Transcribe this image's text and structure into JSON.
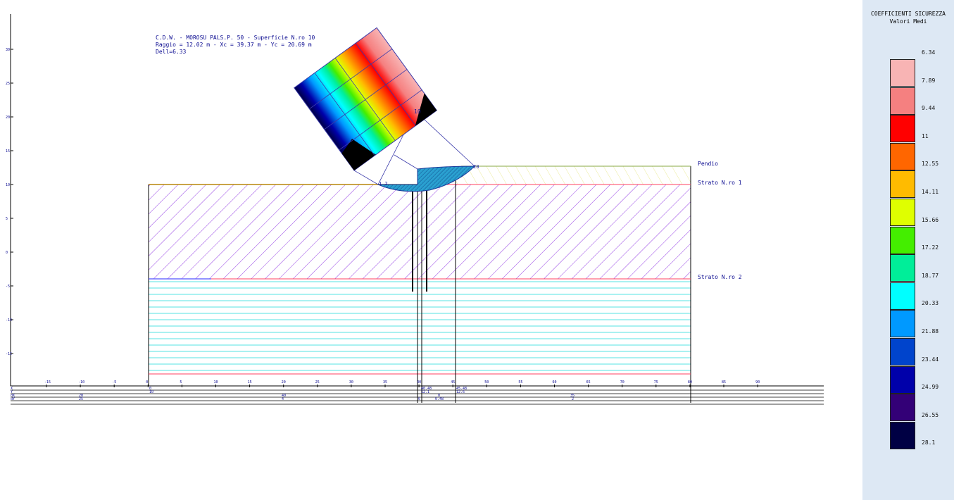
{
  "header": {
    "line1": "C.D.W. - MOROSU PALS.P. 50 - Superficie N.ro 10",
    "line2": "Raggio = 12.02 m - Xc = 39.37 m - Yc = 20.69 m",
    "line3": "Dell=6.33"
  },
  "layers": {
    "pendio": "Pendio",
    "strato1": "Strato N.ro 1",
    "strato2": "Strato N.ro 2"
  },
  "grid_point_label": "10",
  "surface_point_labels": {
    "start": "1 2",
    "end": "20"
  },
  "y_axis_ticks": [
    "30",
    "25",
    "20",
    "15",
    "10",
    "5",
    "0",
    "-5",
    "-10",
    "-15"
  ],
  "x_axis_ticks": [
    "-15",
    "-10",
    "-5",
    "0",
    "5",
    "10",
    "15",
    "20",
    "25",
    "30",
    "35",
    "40",
    "45",
    "50",
    "55",
    "60",
    "65",
    "70",
    "75",
    "80",
    "85",
    "90"
  ],
  "table": {
    "row_labels": [
      "X",
      "Y",
      "dX",
      "dY"
    ],
    "col0": [
      "0",
      "10",
      "",
      ""
    ],
    "col1": [
      "40.48",
      "12.1",
      "0",
      "0.48"
    ],
    "col2": [
      "45.48",
      "12.6",
      "",
      ""
    ],
    "spans": [
      "20",
      "40",
      "35",
      "25",
      "4",
      "6",
      "2"
    ]
  },
  "legend": {
    "title": "COEFFICIENTI SICUREZZA",
    "subtitle": "Valori Medi",
    "values": [
      "6.34",
      "7.89",
      "9.44",
      "11",
      "12.55",
      "14.11",
      "15.66",
      "17.22",
      "18.77",
      "20.33",
      "21.88",
      "23.44",
      "24.99",
      "26.55",
      "28.1"
    ],
    "colors": [
      "#f8b4b4",
      "#f58080",
      "#ff0000",
      "#ff6600",
      "#ffbb00",
      "#dfff00",
      "#44ee00",
      "#00ee99",
      "#00ffff",
      "#0099ff",
      "#0044cc",
      "#0000aa",
      "#330077",
      "#000044"
    ]
  }
}
